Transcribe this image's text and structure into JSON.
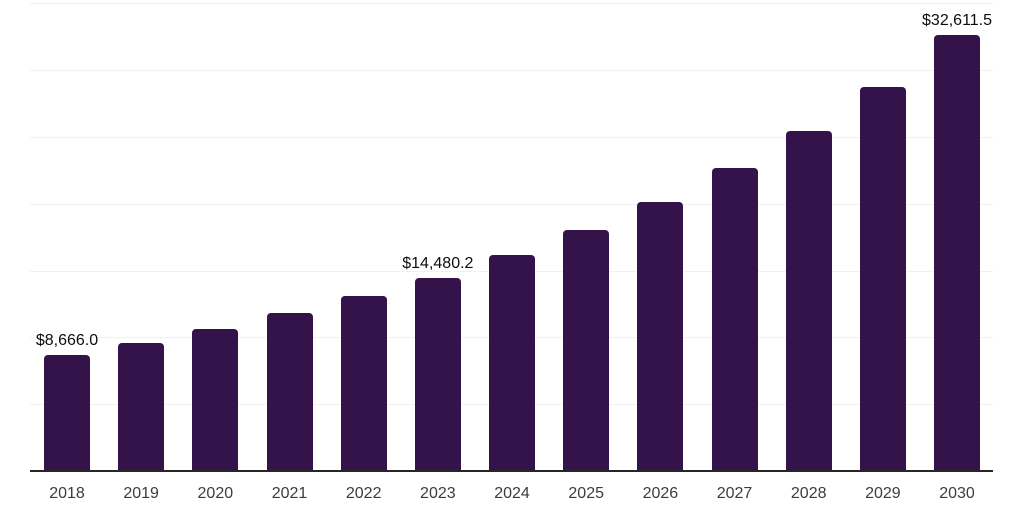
{
  "chart_data": {
    "type": "bar",
    "title": "",
    "xlabel": "",
    "ylabel": "",
    "categories": [
      "2018",
      "2019",
      "2020",
      "2021",
      "2022",
      "2023",
      "2024",
      "2025",
      "2026",
      "2027",
      "2028",
      "2029",
      "2030"
    ],
    "values": [
      8666.0,
      9600,
      10590,
      11830,
      13100,
      14480.2,
      16160,
      18020,
      20100,
      22640,
      25470,
      28740,
      32611.5
    ],
    "data_labels": [
      "$8,666.0",
      null,
      null,
      null,
      null,
      "$14,480.2",
      null,
      null,
      null,
      null,
      null,
      null,
      "$32,611.5"
    ],
    "ylim": [
      0,
      35000
    ],
    "gridline_step": 5000,
    "grid": true,
    "legend": false,
    "colors": {
      "bar": "#34124a",
      "gridline": "#f1f1f3",
      "axis_line": "#262626",
      "tick_label": "#3c3c3c",
      "data_label": "#0d0d0d",
      "background": "#ffffff"
    }
  }
}
